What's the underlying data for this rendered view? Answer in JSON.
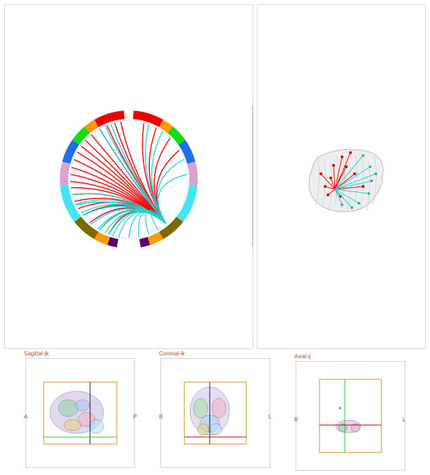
{
  "colors": {
    "red_edges": "#ee0000",
    "cyan_edges": "#22d3d3",
    "frame_orange": "#e08a1e",
    "cross_green": "#1fcf1f",
    "cross_dark": "#1a1a66",
    "cross_red": "#cc0000",
    "label_color": "#a0522d"
  },
  "chord_segments": [
    "red",
    "orange",
    "green",
    "blue",
    "pink",
    "cyan",
    "olive",
    "orange",
    "purple"
  ],
  "views": {
    "sagittal": {
      "title": "Sagittal-jk",
      "left": "A",
      "right": "P"
    },
    "coronal": {
      "title": "Coronal-ik",
      "left": "R",
      "right": "L"
    },
    "axial": {
      "title": "Axial-ij",
      "left": "R",
      "right": "L"
    }
  }
}
